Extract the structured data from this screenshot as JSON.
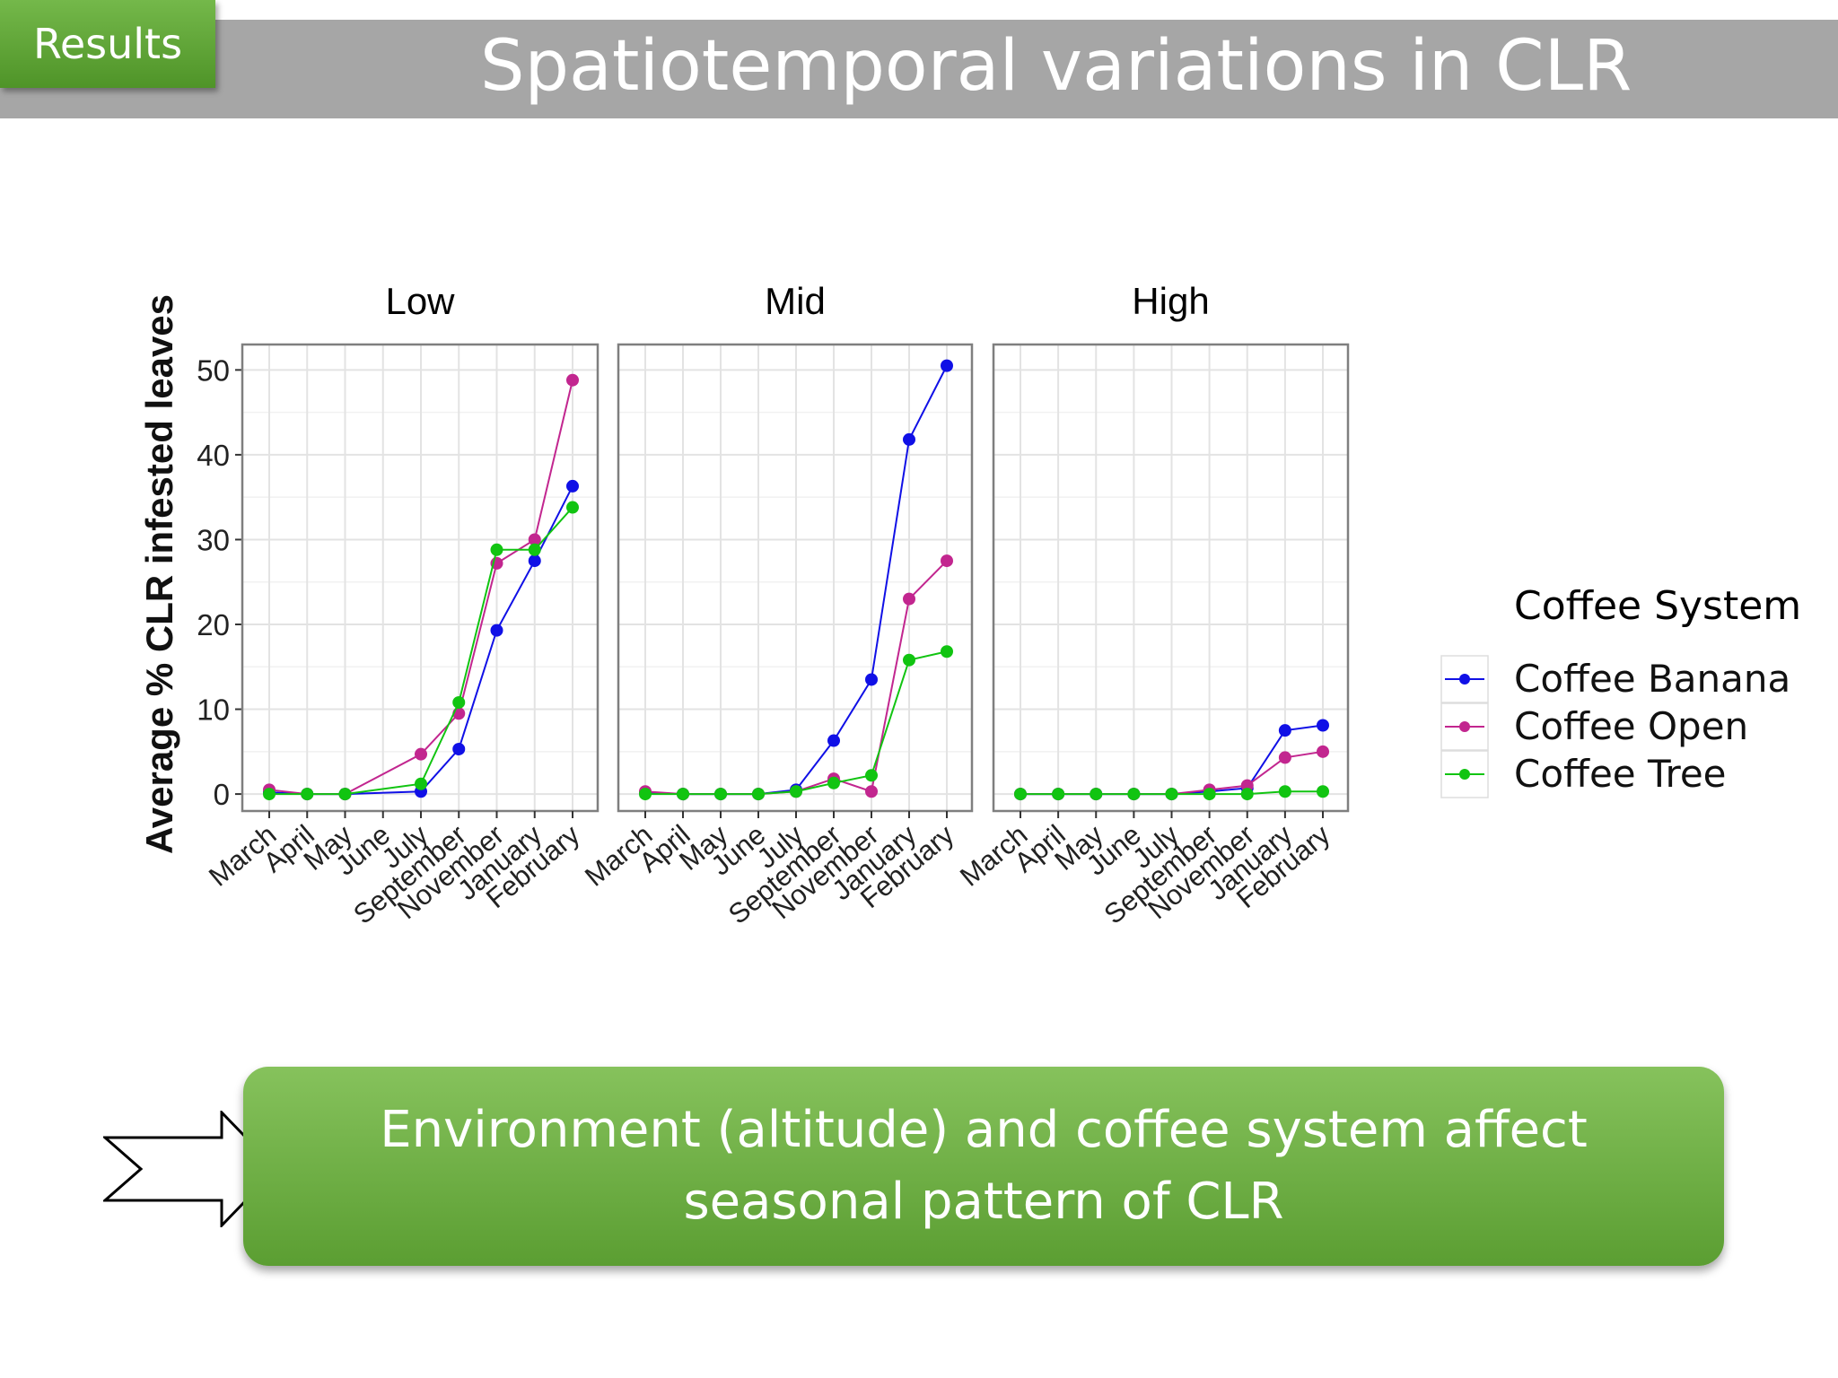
{
  "slide": {
    "section_tab": "Results",
    "title": "Spatiotemporal variations in CLR",
    "conclusion": "Environment (altitude) and coffee system affect seasonal pattern of CLR"
  },
  "chart_data": {
    "type": "line",
    "ylabel": "Average % CLR infested leaves",
    "xlabel": "",
    "ylim": [
      -2,
      53
    ],
    "yticks": [
      0,
      10,
      20,
      30,
      40,
      50
    ],
    "grid": true,
    "categories": [
      "March",
      "April",
      "May",
      "June",
      "July",
      "September",
      "November",
      "January",
      "February"
    ],
    "legend": {
      "title": "Coffee System",
      "position": "right"
    },
    "colors": {
      "Coffee Banana": "#1010e6",
      "Coffee Open": "#c2268f",
      "Coffee Tree": "#11c411"
    },
    "panels": [
      {
        "name": "Low",
        "series": [
          {
            "name": "Coffee Banana",
            "x": [
              "March",
              "April",
              "May",
              "July",
              "September",
              "November",
              "January",
              "February"
            ],
            "values": [
              0.2,
              0,
              0,
              0.3,
              5.3,
              19.3,
              27.5,
              36.3
            ]
          },
          {
            "name": "Coffee Open",
            "x": [
              "March",
              "April",
              "May",
              "July",
              "September",
              "November",
              "January",
              "February"
            ],
            "values": [
              0.5,
              0,
              0,
              4.7,
              9.5,
              27.2,
              30,
              48.8
            ]
          },
          {
            "name": "Coffee Tree",
            "x": [
              "March",
              "April",
              "May",
              "July",
              "September",
              "November",
              "January",
              "February"
            ],
            "values": [
              0,
              0,
              0,
              1.2,
              10.8,
              28.8,
              28.8,
              33.8
            ]
          }
        ]
      },
      {
        "name": "Mid",
        "series": [
          {
            "name": "Coffee Banana",
            "x": [
              "March",
              "April",
              "May",
              "June",
              "July",
              "September",
              "November",
              "January",
              "February"
            ],
            "values": [
              0.2,
              0,
              0,
              0,
              0.5,
              6.3,
              13.5,
              41.8,
              50.5
            ]
          },
          {
            "name": "Coffee Open",
            "x": [
              "March",
              "April",
              "May",
              "June",
              "July",
              "September",
              "November",
              "January",
              "February"
            ],
            "values": [
              0.3,
              0,
              0,
              0,
              0.3,
              1.8,
              0.3,
              23,
              27.5
            ]
          },
          {
            "name": "Coffee Tree",
            "x": [
              "March",
              "April",
              "May",
              "June",
              "July",
              "September",
              "November",
              "January",
              "February"
            ],
            "values": [
              0,
              0,
              0,
              0,
              0.3,
              1.3,
              2.2,
              15.8,
              16.8
            ]
          }
        ]
      },
      {
        "name": "High",
        "series": [
          {
            "name": "Coffee Banana",
            "x": [
              "March",
              "April",
              "May",
              "June",
              "July",
              "September",
              "November",
              "January",
              "February"
            ],
            "values": [
              0,
              0,
              0,
              0,
              0,
              0.3,
              0.7,
              7.5,
              8.1
            ]
          },
          {
            "name": "Coffee Open",
            "x": [
              "March",
              "April",
              "May",
              "June",
              "July",
              "September",
              "November",
              "January",
              "February"
            ],
            "values": [
              0,
              0,
              0,
              0,
              0,
              0.5,
              1,
              4.3,
              5
            ]
          },
          {
            "name": "Coffee Tree",
            "x": [
              "March",
              "April",
              "May",
              "June",
              "July",
              "September",
              "November",
              "January",
              "February"
            ],
            "values": [
              0,
              0,
              0,
              0,
              0,
              0,
              0,
              0.3,
              0.3
            ]
          }
        ]
      }
    ]
  }
}
